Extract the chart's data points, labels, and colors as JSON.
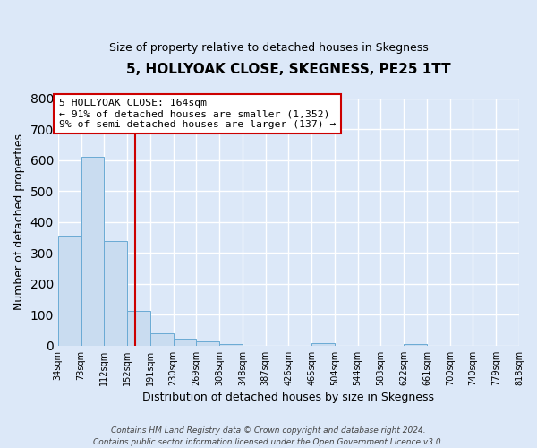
{
  "title": "5, HOLLYOAK CLOSE, SKEGNESS, PE25 1TT",
  "subtitle": "Size of property relative to detached houses in Skegness",
  "xlabel": "Distribution of detached houses by size in Skegness",
  "ylabel": "Number of detached properties",
  "bar_values": [
    355,
    610,
    340,
    113,
    40,
    22,
    15,
    5,
    0,
    0,
    0,
    7,
    0,
    0,
    0,
    5
  ],
  "bin_left_edges": [
    34,
    73,
    112,
    151,
    190,
    229,
    268,
    307,
    346,
    385,
    424,
    463,
    502,
    541,
    580,
    619
  ],
  "bin_width": 39,
  "x_tick_labels": [
    "34sqm",
    "73sqm",
    "112sqm",
    "152sqm",
    "191sqm",
    "230sqm",
    "269sqm",
    "308sqm",
    "348sqm",
    "387sqm",
    "426sqm",
    "465sqm",
    "504sqm",
    "544sqm",
    "583sqm",
    "622sqm",
    "661sqm",
    "700sqm",
    "740sqm",
    "779sqm",
    "818sqm"
  ],
  "x_tick_positions": [
    34,
    73,
    112,
    151,
    190,
    229,
    268,
    307,
    346,
    385,
    424,
    463,
    502,
    541,
    580,
    619,
    658,
    697,
    736,
    775,
    814
  ],
  "bar_color": "#c9dcf0",
  "bar_edge_color": "#6aaad4",
  "property_line_x": 164,
  "property_line_color": "#cc0000",
  "annotation_text": "5 HOLLYOAK CLOSE: 164sqm\n← 91% of detached houses are smaller (1,352)\n9% of semi-detached houses are larger (137) →",
  "annotation_box_color": "#cc0000",
  "ylim": [
    0,
    800
  ],
  "yticks": [
    0,
    100,
    200,
    300,
    400,
    500,
    600,
    700,
    800
  ],
  "footer_text": "Contains HM Land Registry data © Crown copyright and database right 2024.\nContains public sector information licensed under the Open Government Licence v3.0.",
  "background_color": "#dce8f8",
  "plot_background": "#dce8f8",
  "grid_color": "#ffffff"
}
